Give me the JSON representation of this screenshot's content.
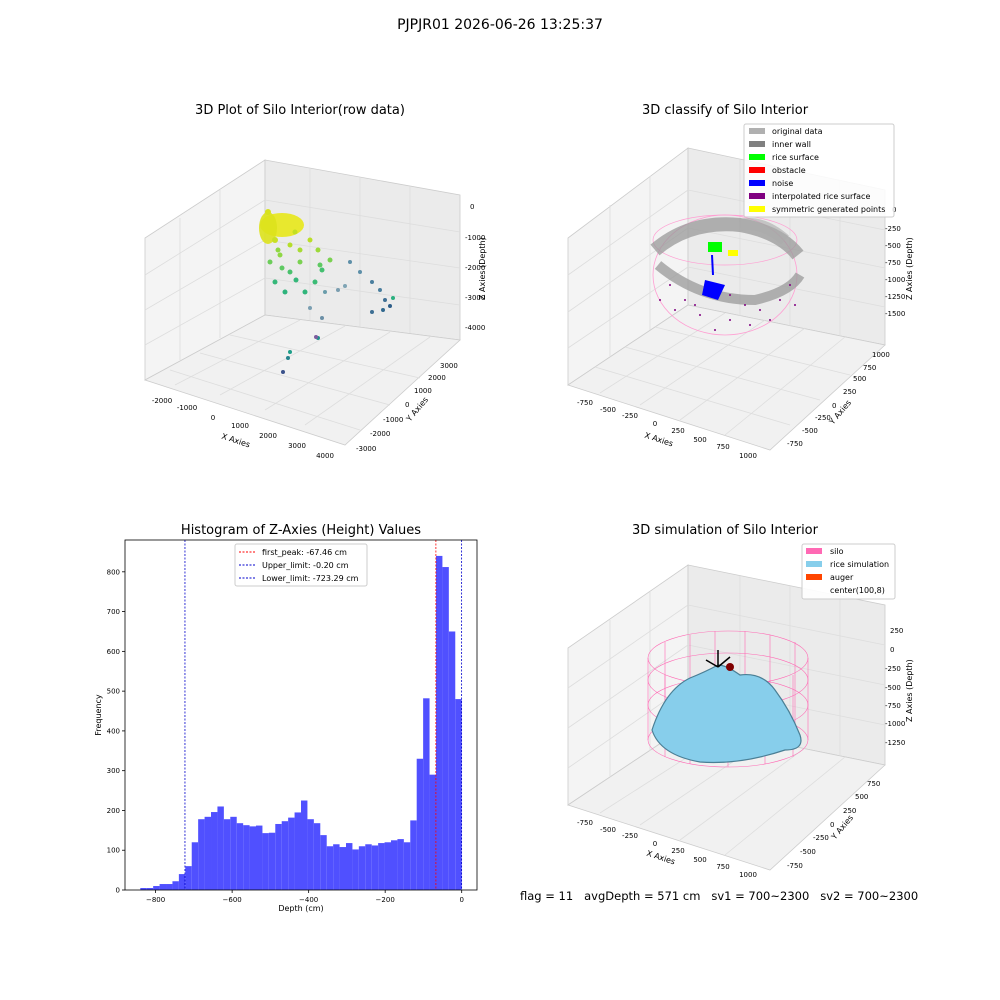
{
  "figure": {
    "title": "PJPJR01 2026-06-26 13:25:37"
  },
  "colors": {
    "hist_bar": "#5050ff",
    "first_peak": "#ff0000",
    "limits": "#0000cc",
    "silo": "#ff69b4",
    "rice_simulation": "#87ceeb",
    "auger": "#ff4500",
    "original_data": "#b0b0b0",
    "inner_wall": "#808080",
    "rice_surface": "#00ff00",
    "obstacle": "#ff0000",
    "noise": "#0000ff",
    "interpolated_rice_surface": "#800080",
    "symmetric_generated_points": "#ffff00"
  },
  "raw_plot": {
    "title": "3D Plot of Silo Interior(row data)",
    "x_label": "X Axies",
    "y_label": "Y Axies",
    "z_label": "Z Axies (Depth)",
    "x_ticks": [
      "-2000",
      "-1000",
      "0",
      "1000",
      "2000",
      "3000",
      "4000"
    ],
    "y_ticks": [
      "3000",
      "2000",
      "1000",
      "0",
      "-1000",
      "-2000",
      "-3000"
    ],
    "z_ticks": [
      "0",
      "-1000",
      "-2000",
      "-3000",
      "-4000"
    ]
  },
  "classify_plot": {
    "title": "3D classify of Silo Interior",
    "x_label": "X Axies",
    "y_label": "Y Axies",
    "z_label": "Z Axies (Depth)",
    "x_ticks": [
      "-750",
      "-500",
      "-250",
      "0",
      "250",
      "500",
      "750",
      "1000"
    ],
    "y_ticks": [
      "1000",
      "750",
      "500",
      "250",
      "0",
      "-250",
      "-500",
      "-750"
    ],
    "z_ticks": [
      "0",
      "-250",
      "-500",
      "-750",
      "-1000",
      "-1250",
      "-1500"
    ],
    "legend": [
      "original data",
      "inner wall",
      "rice surface",
      "obstacle",
      "noise",
      "interpolated rice surface",
      "symmetric generated points"
    ]
  },
  "sim_plot": {
    "title": "3D simulation of Silo Interior",
    "x_label": "X Axies",
    "y_label": "Y Axies",
    "z_label": "Z Axies (Depth)",
    "x_ticks": [
      "-750",
      "-500",
      "-250",
      "0",
      "250",
      "500",
      "750",
      "1000"
    ],
    "y_ticks": [
      "750",
      "500",
      "250",
      "0",
      "-250",
      "-500",
      "-750"
    ],
    "z_ticks": [
      "250",
      "0",
      "-250",
      "-500",
      "-750",
      "-1000",
      "-1250"
    ],
    "legend": [
      "silo",
      "rice simulation",
      "auger",
      "center(100,8)"
    ]
  },
  "status_line": "flag = 11   avgDepth = 571 cm   sv1 = 700~2300   sv2 = 700~2300",
  "chart_data": [
    {
      "type": "bar",
      "title": "Histogram of Z-Axies (Height) Values",
      "xlabel": "Depth (cm)",
      "ylabel": "Frequency",
      "xlim": [
        -880,
        40
      ],
      "ylim": [
        0,
        880
      ],
      "x_ticks": [
        -800,
        -600,
        -400,
        -200,
        0
      ],
      "y_ticks": [
        0,
        100,
        200,
        300,
        400,
        500,
        600,
        700,
        800
      ],
      "bin_start": -840,
      "bin_width": 16.8,
      "values": [
        5,
        5,
        10,
        15,
        15,
        22,
        40,
        60,
        120,
        178,
        184,
        196,
        210,
        178,
        184,
        168,
        163,
        160,
        162,
        143,
        144,
        166,
        173,
        182,
        195,
        225,
        178,
        168,
        138,
        110,
        115,
        108,
        118,
        102,
        110,
        115,
        112,
        118,
        120,
        125,
        128,
        120,
        175,
        330,
        482,
        290,
        840,
        812,
        650,
        480
      ],
      "lines": [
        {
          "name": "first_peak: -67.46 cm",
          "x": -67.46,
          "color": "#ff0000"
        },
        {
          "name": "Upper_limit: -0.20 cm",
          "x": -0.2,
          "color": "#0000cc"
        },
        {
          "name": "Lower_limit: -723.29 cm",
          "x": -723.29,
          "color": "#0000cc"
        }
      ]
    }
  ]
}
